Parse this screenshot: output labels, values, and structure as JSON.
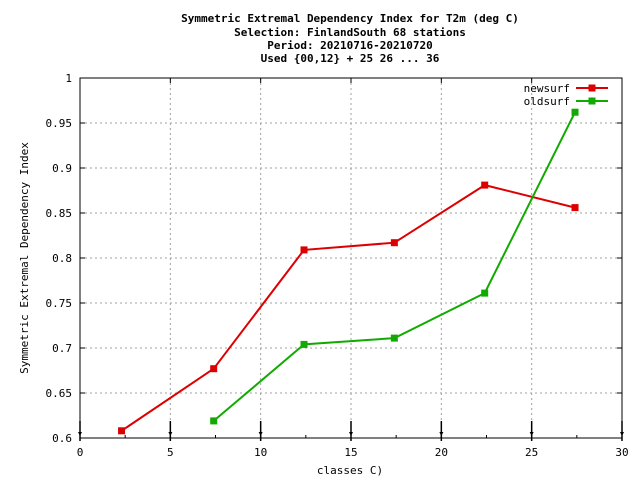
{
  "chart_data": {
    "type": "line",
    "title_lines": [
      "Symmetric Extremal Dependency Index  for T2m (deg C)",
      "Selection: FinlandSouth     68 stations",
      "Period: 20210716-20210720",
      "Used {00,12} + 25 26 ... 36"
    ],
    "xlabel": "classes C)",
    "ylabel": "Symmetric Extremal Dependency Index",
    "xlim": [
      0,
      30
    ],
    "ylim": [
      0.6,
      1
    ],
    "xticks": [
      0,
      5,
      10,
      15,
      20,
      25,
      30
    ],
    "xtick_labels": [
      "0",
      "5",
      "10",
      "15",
      "20",
      "25",
      "30"
    ],
    "yticks": [
      0.6,
      0.65,
      0.7,
      0.75,
      0.8,
      0.85,
      0.9,
      0.95,
      1
    ],
    "ytick_labels": [
      "0.6",
      "0.65",
      "0.7",
      "0.75",
      "0.8",
      "0.85",
      "0.9",
      "0.95",
      "1"
    ],
    "grid": true,
    "legend_position": "top-right",
    "series": [
      {
        "name": "newsurf",
        "color": "#dd0000",
        "x": [
          2.3,
          7.4,
          12.4,
          17.4,
          22.4,
          27.4
        ],
        "y": [
          0.608,
          0.677,
          0.809,
          0.817,
          0.881,
          0.856
        ]
      },
      {
        "name": "oldsurf",
        "color": "#11aa00",
        "x": [
          7.4,
          12.4,
          17.4,
          22.4,
          27.4
        ],
        "y": [
          0.619,
          0.704,
          0.711,
          0.761,
          0.962
        ]
      }
    ]
  }
}
